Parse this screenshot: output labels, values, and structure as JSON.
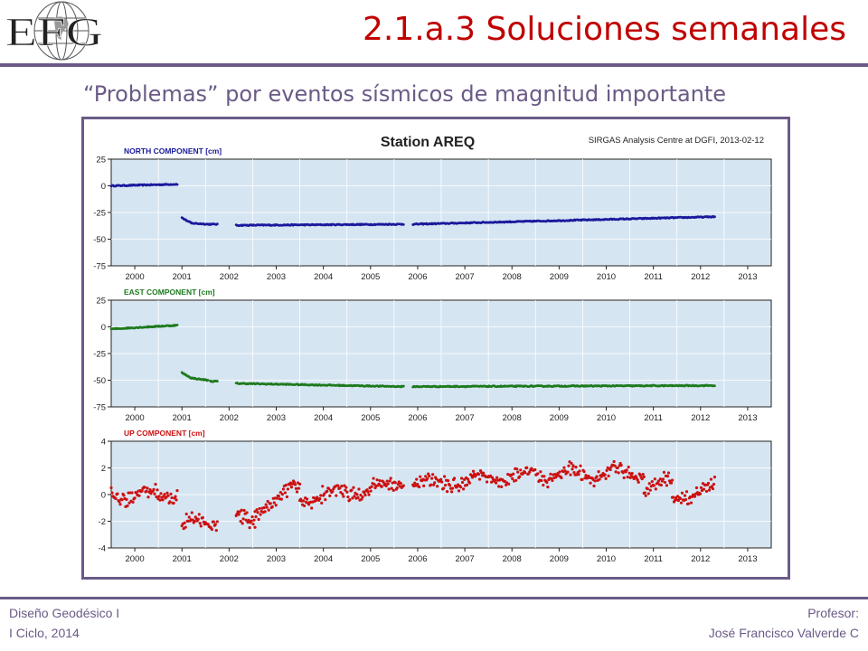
{
  "logo_text": "EFG",
  "slide_title": "2.1.a.3 Soluciones semanales",
  "subtitle": "“Problemas” por eventos sísmicos de magnitud importante",
  "footer": {
    "course": "Diseño Geodésico I",
    "term": "I Ciclo, 2014",
    "role": "Profesor:",
    "professor": "José Francisco Valverde C"
  },
  "chart_data": {
    "type": "scatter",
    "title": "Station AREQ",
    "source": "SIRGAS Analysis Centre at DGFI, 2013-02-12",
    "x_ticks": [
      "2000",
      "2001",
      "2002",
      "2003",
      "2004",
      "2005",
      "2006",
      "2007",
      "2008",
      "2009",
      "2010",
      "2011",
      "2012",
      "2013"
    ],
    "xlim": [
      1999.5,
      2013.5
    ],
    "grid": true,
    "panels": [
      {
        "name": "NORTH COMPONENT [cm]",
        "color": "#1a1a9c",
        "ylim": [
          -75,
          25
        ],
        "y_ticks": [
          25,
          0,
          -25,
          -50,
          -75
        ],
        "segments": [
          {
            "x0": 1999.5,
            "x1": 2000.9,
            "y0": 0,
            "y1": 1.5
          },
          {
            "x0": 2001.0,
            "x1": 2001.2,
            "y0": -30,
            "y1": -35
          },
          {
            "x0": 2001.2,
            "x1": 2001.55,
            "y0": -35,
            "y1": -36
          },
          {
            "x0": 2001.55,
            "x1": 2001.75,
            "y0": -36,
            "y1": -36
          },
          {
            "x0": 2002.15,
            "x1": 2005.7,
            "y0": -37,
            "y1": -36
          },
          {
            "x0": 2005.9,
            "x1": 2012.3,
            "y0": -36,
            "y1": -29
          }
        ]
      },
      {
        "name": "EAST COMPONENT [cm]",
        "color": "#1e7a1e",
        "ylim": [
          -75,
          25
        ],
        "y_ticks": [
          25,
          0,
          -25,
          -50,
          -75
        ],
        "segments": [
          {
            "x0": 1999.5,
            "x1": 2000.9,
            "y0": -2,
            "y1": 1.5
          },
          {
            "x0": 2001.0,
            "x1": 2001.2,
            "y0": -43,
            "y1": -48
          },
          {
            "x0": 2001.2,
            "x1": 2001.55,
            "y0": -48,
            "y1": -50
          },
          {
            "x0": 2001.6,
            "x1": 2001.75,
            "y0": -51,
            "y1": -51
          },
          {
            "x0": 2002.15,
            "x1": 2005.7,
            "y0": -53,
            "y1": -56
          },
          {
            "x0": 2005.9,
            "x1": 2012.3,
            "y0": -56,
            "y1": -55
          }
        ]
      },
      {
        "name": "UP COMPONENT [cm]",
        "color": "#cc1111",
        "ylim": [
          -4,
          4
        ],
        "y_ticks": [
          4,
          2,
          0,
          -2,
          -4
        ],
        "segments": [
          {
            "x0": 1999.5,
            "x1": 2000.9,
            "y0": 0,
            "y1": 0
          },
          {
            "x0": 2001.0,
            "x1": 2001.75,
            "y0": -2.3,
            "y1": -2
          },
          {
            "x0": 2002.15,
            "x1": 2002.55,
            "y0": -1.8,
            "y1": -2.1
          },
          {
            "x0": 2002.55,
            "x1": 2003.5,
            "y0": -1.2,
            "y1": 0.5
          },
          {
            "x0": 2003.5,
            "x1": 2005.7,
            "y0": -0.3,
            "y1": 0.8
          },
          {
            "x0": 2005.9,
            "x1": 2007.2,
            "y0": 0.8,
            "y1": 1.0
          },
          {
            "x0": 2007.2,
            "x1": 2009.3,
            "y0": 1.2,
            "y1": 1.6
          },
          {
            "x0": 2009.3,
            "x1": 2010.8,
            "y0": 1.4,
            "y1": 1.7
          },
          {
            "x0": 2010.8,
            "x1": 2011.4,
            "y0": 0.6,
            "y1": 0.8
          },
          {
            "x0": 2011.4,
            "x1": 2012.3,
            "y0": -0.5,
            "y1": 0.6
          }
        ],
        "noise": 0.45
      }
    ]
  }
}
